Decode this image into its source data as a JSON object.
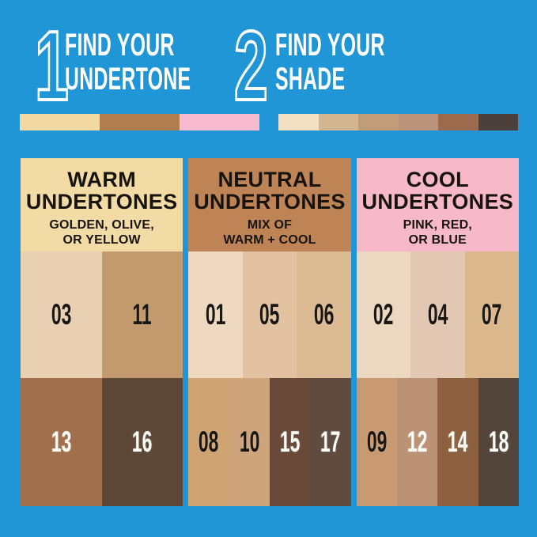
{
  "background": "#2196D6",
  "text_colors": {
    "dark": "#1B1713",
    "light": "#FDFDF8",
    "step_text": "#FFFFFF"
  },
  "steps": [
    {
      "number": "1",
      "line1": "FIND YOUR",
      "line2": "UNDERTONE",
      "swatches": [
        "#F2D9A2",
        "#B17C4F",
        "#F8BACF"
      ]
    },
    {
      "number": "2",
      "line1": "FIND YOUR",
      "line2": "SHADE",
      "swatches": [
        "#F3E0C3",
        "#D4B592",
        "#C19C79",
        "#B9937A",
        "#9C6A4C",
        "#4B403C"
      ]
    }
  ],
  "panels": [
    {
      "id": "warm",
      "header_bg": "#F2DBA4",
      "title_line1": "WARM",
      "title_line2": "UNDERTONES",
      "sub_line1": "GOLDEN, OLIVE,",
      "sub_line2": "OR YELLOW",
      "row1": [
        {
          "label": "03",
          "color": "#E9D0B3",
          "text_color": "#1B1713"
        },
        {
          "label": "11",
          "color": "#C29A6D",
          "text_color": "#1B1713"
        }
      ],
      "row2": [
        {
          "label": "13",
          "color": "#A26F4D",
          "text_color": "#FDFDF8"
        },
        {
          "label": "16",
          "color": "#5D4737",
          "text_color": "#FDFDF8"
        }
      ]
    },
    {
      "id": "neutral",
      "header_bg": "#BF8456",
      "title_line1": "NEUTRAL",
      "title_line2": "UNDERTONES",
      "sub_line1": "MIX OF",
      "sub_line2": "WARM + COOL",
      "row1": [
        {
          "label": "01",
          "color": "#EED9C0",
          "text_color": "#1B1713"
        },
        {
          "label": "05",
          "color": "#E2C2A0",
          "text_color": "#1B1713"
        },
        {
          "label": "06",
          "color": "#DCBA94",
          "text_color": "#1B1713"
        }
      ],
      "row2": [
        {
          "label": "08",
          "color": "#D0A472",
          "text_color": "#1B1713"
        },
        {
          "label": "10",
          "color": "#CDA47B",
          "text_color": "#1B1713"
        },
        {
          "label": "15",
          "color": "#69493A",
          "text_color": "#FDFDF8"
        },
        {
          "label": "17",
          "color": "#5F4C3F",
          "text_color": "#FDFDF8"
        }
      ]
    },
    {
      "id": "cool",
      "header_bg": "#F7B9C9",
      "title_line1": "COOL",
      "title_line2": "UNDERTONES",
      "sub_line1": "PINK, RED,",
      "sub_line2": "OR BLUE",
      "row1": [
        {
          "label": "02",
          "color": "#ECD7C0",
          "text_color": "#1B1713"
        },
        {
          "label": "04",
          "color": "#E2C8B2",
          "text_color": "#1B1713"
        },
        {
          "label": "07",
          "color": "#DCB98C",
          "text_color": "#1B1713"
        }
      ],
      "row2": [
        {
          "label": "09",
          "color": "#C99A72",
          "text_color": "#1B1713"
        },
        {
          "label": "12",
          "color": "#BC9277",
          "text_color": "#FDFDF8"
        },
        {
          "label": "14",
          "color": "#8D6140",
          "text_color": "#FDFDF8"
        },
        {
          "label": "18",
          "color": "#53443C",
          "text_color": "#FDFDF8"
        }
      ]
    }
  ]
}
